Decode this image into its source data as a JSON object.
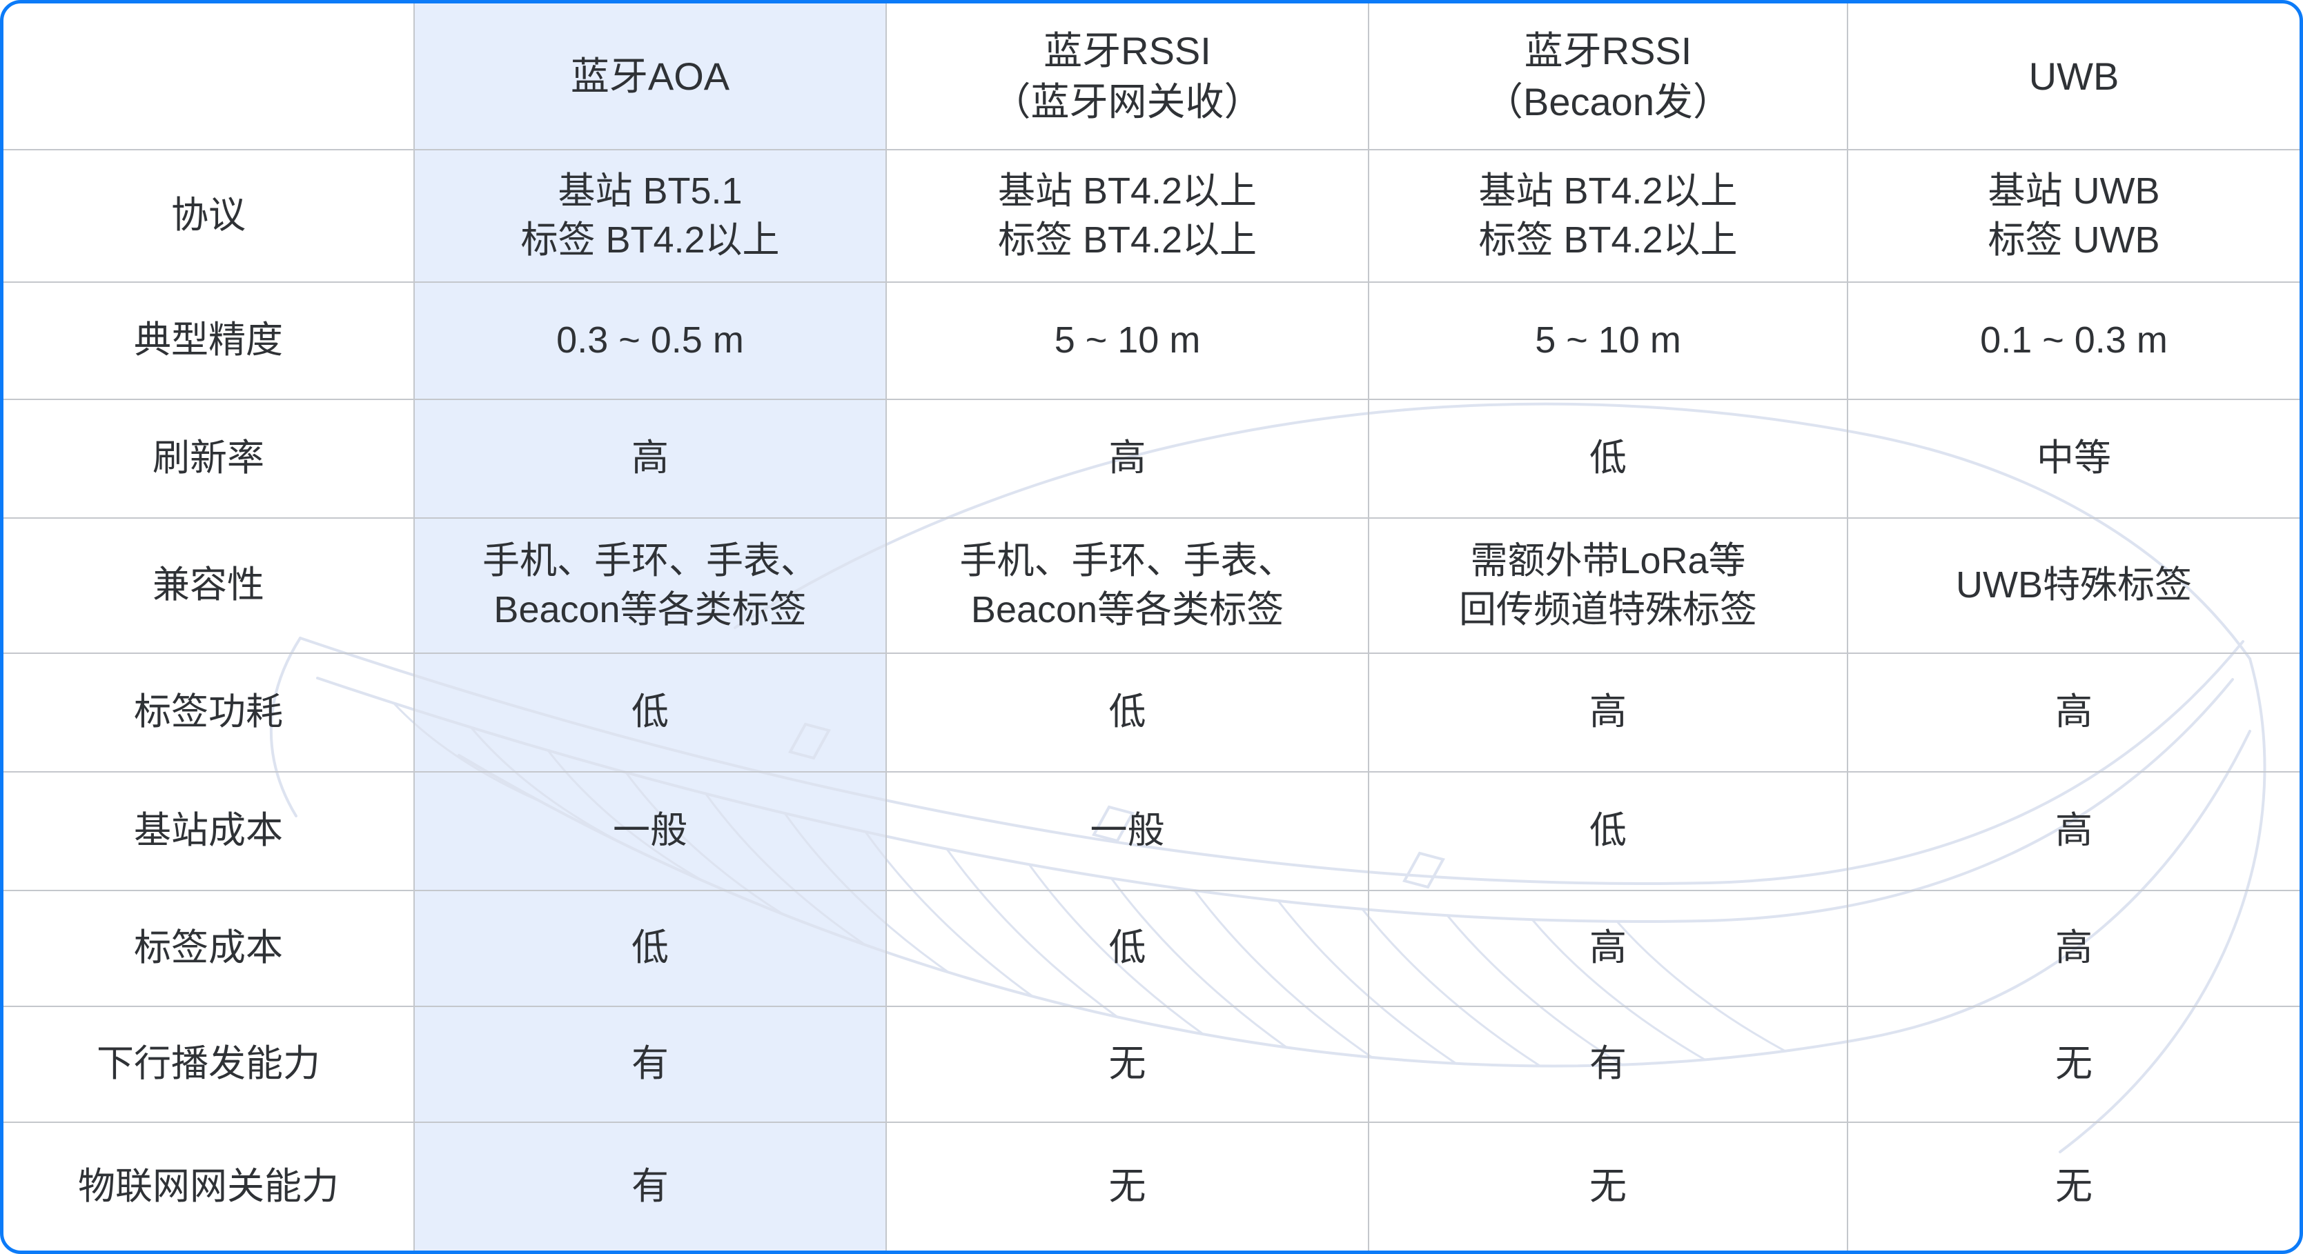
{
  "table": {
    "columns": [
      "",
      "蓝牙AOA",
      "蓝牙RSSI\n（蓝牙网关收）",
      "蓝牙RSSI\n（Becaon发）",
      "UWB"
    ],
    "highlighted_column": "蓝牙AOA",
    "rows": [
      {
        "label": "协议",
        "values": [
          "基站 BT5.1\n标签 BT4.2以上",
          "基站 BT4.2以上\n标签 BT4.2以上",
          "基站 BT4.2以上\n标签 BT4.2以上",
          "基站 UWB\n标签 UWB"
        ]
      },
      {
        "label": "典型精度",
        "values": [
          "0.3 ~ 0.5 m",
          "5 ~ 10 m",
          "5 ~ 10 m",
          "0.1 ~ 0.3 m"
        ]
      },
      {
        "label": "刷新率",
        "values": [
          "高",
          "高",
          "低",
          "中等"
        ]
      },
      {
        "label": "兼容性",
        "values": [
          "手机、手环、手表、\nBeacon等各类标签",
          "手机、手环、手表、\nBeacon等各类标签",
          "需额外带LoRa等\n回传频道特殊标签",
          "UWB特殊标签"
        ]
      },
      {
        "label": "标签功耗",
        "values": [
          "低",
          "低",
          "高",
          "高"
        ]
      },
      {
        "label": "基站成本",
        "values": [
          "一般",
          "一般",
          "低",
          "高"
        ]
      },
      {
        "label": "标签成本",
        "values": [
          "低",
          "低",
          "高",
          "高"
        ]
      },
      {
        "label": "下行播发能力",
        "values": [
          "有",
          "无",
          "有",
          "无"
        ]
      },
      {
        "label": "物联网网关能力",
        "values": [
          "有",
          "无",
          "无",
          "无"
        ]
      }
    ],
    "colors": {
      "frame_blue": "#0c7bf8",
      "highlight_bg": "#e6eefc",
      "divider_gray": "#c4c7cc",
      "text": "#2f3236",
      "watermark": "#dde3f0"
    }
  }
}
